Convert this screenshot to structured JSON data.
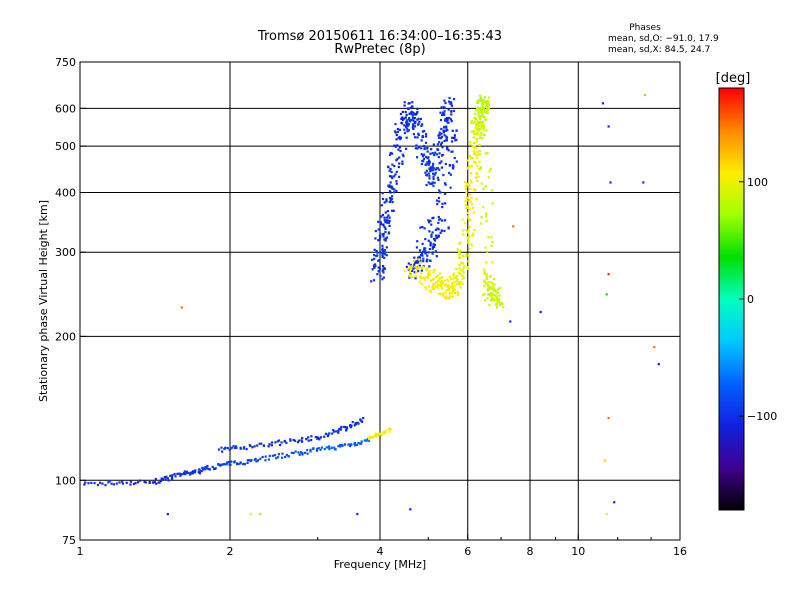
{
  "title": {
    "line1": "Tromsø 20150611 16:34:00–16:35:43",
    "line2": "RwPretec (8p)"
  },
  "phases": {
    "heading": "Phases",
    "line_o": "mean, sd,O: −91.0, 17.9",
    "line_x": "mean, sd,X:  84.5, 24.7"
  },
  "colorbar": {
    "unit_label": "[deg]",
    "ticks": [
      {
        "label": "100",
        "value": 100
      },
      {
        "label": "0",
        "value": 0
      },
      {
        "label": "−100",
        "value": -100
      }
    ],
    "min": -180,
    "max": 180,
    "colors_top_to_bottom": [
      "#ff0000",
      "#ff8800",
      "#ffee00",
      "#a0ff00",
      "#00e000",
      "#00ffc0",
      "#00c8ff",
      "#0060ff",
      "#1020e0",
      "#400090",
      "#000000"
    ]
  },
  "chart_data": {
    "type": "scatter",
    "title": "Tromsø 20150611 16:34:00–16:35:43",
    "subtitle": "RwPretec (8p)",
    "xlabel": "Frequency [MHz]",
    "ylabel": "Stationary phase Virtual Height [km]",
    "xscale": "log",
    "yscale": "log",
    "xlim": [
      1,
      16
    ],
    "ylim": [
      75,
      750
    ],
    "xticks": [
      {
        "v": 1,
        "l": "1"
      },
      {
        "v": 2,
        "l": "2"
      },
      {
        "v": 4,
        "l": "4"
      },
      {
        "v": 6,
        "l": "6"
      },
      {
        "v": 8,
        "l": "8"
      },
      {
        "v": 10,
        "l": "10"
      },
      {
        "v": 16,
        "l": "16"
      }
    ],
    "yticks": [
      {
        "v": 75,
        "l": "75"
      },
      {
        "v": 100,
        "l": "100"
      },
      {
        "v": 200,
        "l": "200"
      },
      {
        "v": 300,
        "l": "300"
      },
      {
        "v": 400,
        "l": "400"
      },
      {
        "v": 500,
        "l": "500"
      },
      {
        "v": 600,
        "l": "600"
      },
      {
        "v": 750,
        "l": "750"
      }
    ],
    "grid_x": [
      2,
      4,
      6,
      8,
      10
    ],
    "grid_y": [
      100,
      200,
      300,
      400,
      500,
      600
    ],
    "color_variable": "phase [deg]",
    "series": [
      {
        "points": [
          [
            1.02,
            98,
            -100
          ],
          [
            1.2,
            99,
            -100
          ],
          [
            1.4,
            99,
            -110
          ],
          [
            1.5,
            101,
            -100
          ],
          [
            1.6,
            103,
            -95
          ],
          [
            1.7,
            104,
            -100
          ],
          [
            1.8,
            106,
            -95
          ],
          [
            1.95,
            108,
            -90
          ],
          [
            2.1,
            109,
            -90
          ],
          [
            2.3,
            111,
            -85
          ],
          [
            2.6,
            113,
            -80
          ],
          [
            2.9,
            115,
            -80
          ],
          [
            3.2,
            117,
            -75
          ],
          [
            3.5,
            119,
            -75
          ],
          [
            3.8,
            121,
            -70
          ]
        ]
      },
      {
        "points": [
          [
            1.9,
            116,
            -95
          ],
          [
            2.1,
            117,
            -95
          ],
          [
            2.4,
            119,
            -100
          ],
          [
            2.7,
            121,
            -100
          ],
          [
            3.0,
            123,
            -100
          ],
          [
            3.3,
            127,
            -100
          ],
          [
            3.5,
            130,
            -100
          ],
          [
            3.7,
            135,
            -95
          ]
        ]
      },
      {
        "points": [
          [
            3.8,
            122,
            110
          ],
          [
            4.0,
            125,
            105
          ],
          [
            4.2,
            128,
            110
          ]
        ]
      },
      {
        "points": [
          [
            3.95,
            270,
            -100
          ],
          [
            4.0,
            300,
            -95
          ],
          [
            4.1,
            350,
            -105
          ],
          [
            4.2,
            420,
            -100
          ],
          [
            4.4,
            520,
            -100
          ],
          [
            4.55,
            600,
            -105
          ],
          [
            4.7,
            560,
            -100
          ],
          [
            4.9,
            480,
            -100
          ],
          [
            5.1,
            420,
            -95
          ],
          [
            5.3,
            520,
            -100
          ],
          [
            5.5,
            620,
            -100
          ],
          [
            5.6,
            450,
            -100
          ],
          [
            4.6,
            270,
            -100
          ],
          [
            5.0,
            300,
            -100
          ],
          [
            5.4,
            350,
            -100
          ]
        ]
      },
      {
        "points": [
          [
            4.6,
            280,
            110
          ],
          [
            5.0,
            265,
            105
          ],
          [
            5.3,
            255,
            100
          ],
          [
            5.6,
            250,
            110
          ],
          [
            5.8,
            270,
            95
          ],
          [
            6.0,
            330,
            100
          ],
          [
            6.1,
            420,
            110
          ],
          [
            6.2,
            500,
            100
          ],
          [
            6.3,
            560,
            90
          ],
          [
            6.4,
            600,
            85
          ],
          [
            6.5,
            620,
            80
          ],
          [
            6.6,
            260,
            95
          ],
          [
            6.7,
            245,
            90
          ],
          [
            6.9,
            240,
            85
          ]
        ]
      },
      {
        "points": [
          [
            1.6,
            230,
            150
          ],
          [
            1.5,
            85,
            -110
          ],
          [
            2.2,
            85,
            110
          ],
          [
            2.3,
            85,
            70
          ],
          [
            3.6,
            85,
            -100
          ],
          [
            4.6,
            87,
            -110
          ],
          [
            7.3,
            215,
            -100
          ],
          [
            8.4,
            225,
            -110
          ],
          [
            7.4,
            340,
            150
          ],
          [
            11.2,
            615,
            -100
          ],
          [
            11.5,
            550,
            -100
          ],
          [
            11.6,
            420,
            -100
          ],
          [
            11.5,
            270,
            170
          ],
          [
            11.4,
            245,
            40
          ],
          [
            11.5,
            135,
            150
          ],
          [
            11.3,
            110,
            120
          ],
          [
            11.8,
            90,
            -110
          ],
          [
            11.4,
            85,
            110
          ],
          [
            13.5,
            420,
            -100
          ],
          [
            13.6,
            640,
            130
          ],
          [
            14.2,
            190,
            150
          ],
          [
            14.5,
            175,
            -110
          ]
        ]
      }
    ]
  }
}
